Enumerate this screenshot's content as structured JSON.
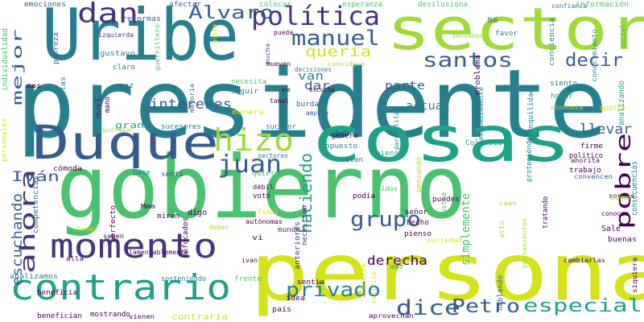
{
  "palette": {
    "dark_purple": "#440154",
    "indigo": "#46337e",
    "slate_blue": "#365c8d",
    "steel_blue": "#277f8e",
    "teal": "#1fa187",
    "green": "#4ac16d",
    "lime": "#a0da39",
    "yellow": "#d4e21a"
  },
  "words": [
    {
      "text": "presidente",
      "color": "#277f8e"
    },
    {
      "text": "gobierno",
      "color": "#4ac16d"
    },
    {
      "text": "persona",
      "color": "#d4e21a"
    },
    {
      "text": "cosas",
      "color": "#1fa187"
    },
    {
      "text": "sector",
      "color": "#a0da39"
    },
    {
      "text": "Uribe",
      "color": "#277f8e"
    },
    {
      "text": "Duque",
      "color": "#365c8d"
    },
    {
      "text": "contrario",
      "color": "#1fa187"
    },
    {
      "text": "momento",
      "color": "#46337e"
    },
    {
      "text": "política",
      "color": "#46337e"
    },
    {
      "text": "dan",
      "color": "#46337e"
    },
    {
      "text": "hizo",
      "color": "#a0da39"
    },
    {
      "text": "Álvaro",
      "color": "#365c8d"
    },
    {
      "text": "manuel",
      "color": "#365c8d"
    },
    {
      "text": "santos",
      "color": "#365c8d"
    },
    {
      "text": "juan",
      "color": "#365c8d"
    },
    {
      "text": "pobre",
      "color": "#440154"
    },
    {
      "text": "ahora",
      "color": "#46337e"
    },
    {
      "text": "grupo",
      "color": "#365c8d"
    },
    {
      "text": "privado",
      "color": "#277f8e"
    },
    {
      "text": "dice",
      "color": "#365c8d"
    },
    {
      "text": "Petro",
      "color": "#365c8d"
    },
    {
      "text": "especial",
      "color": "#1fa187"
    },
    {
      "text": "haciendo",
      "color": "#1fa187"
    },
    {
      "text": "decir",
      "color": "#365c8d"
    },
    {
      "text": "intereses",
      "color": "#365c8d"
    },
    {
      "text": "quería",
      "color": "#d4e21a"
    },
    {
      "text": "mejor",
      "color": "#365c8d"
    },
    {
      "text": "Iván",
      "color": "#365c8d"
    },
    {
      "text": "escuchando",
      "color": "#365c8d"
    },
    {
      "text": "derecha",
      "color": "#440154"
    },
    {
      "text": "llevar",
      "color": "#365c8d"
    },
    {
      "text": "actual",
      "color": "#277f8e"
    },
    {
      "text": "parte",
      "color": "#365c8d"
    },
    {
      "text": "van",
      "color": "#277f8e"
    },
    {
      "text": "dar",
      "color": "#365c8d"
    },
    {
      "text": "simplemente",
      "color": "#4ac16d"
    },
    {
      "text": "emociones",
      "color": "#365c8d"
    },
    {
      "text": "pobreza",
      "color": "#365c8d"
    },
    {
      "text": "gustavo",
      "color": "#277f8e"
    },
    {
      "text": "claro",
      "color": "#277f8e"
    },
    {
      "text": "reformas",
      "color": "#365c8d"
    },
    {
      "text": "afectar",
      "color": "#365c8d"
    },
    {
      "text": "guerrillero",
      "color": "#4ac16d"
    },
    {
      "text": "izquierda",
      "color": "#46337e"
    },
    {
      "text": "colocar",
      "color": "#4ac16d"
    },
    {
      "text": "esperanza",
      "color": "#4ac16d"
    },
    {
      "text": "desilusiona",
      "color": "#4ac16d"
    },
    {
      "text": "confianza",
      "color": "#277f8e"
    },
    {
      "text": "información",
      "color": "#4ac16d"
    },
    {
      "text": "conciencia",
      "color": "#277f8e"
    },
    {
      "text": "problema",
      "color": "#440154"
    },
    {
      "text": "Sé",
      "color": "#365c8d"
    },
    {
      "text": "favor",
      "color": "#277f8e"
    },
    {
      "text": "siento",
      "color": "#277f8e"
    },
    {
      "text": "hogar",
      "color": "#1fa187"
    },
    {
      "text": "seguir",
      "color": "#277f8e"
    },
    {
      "text": "necesita",
      "color": "#4ac16d"
    },
    {
      "text": "manera",
      "color": "#d4e21a"
    },
    {
      "text": "burda",
      "color": "#365c8d"
    },
    {
      "text": "mal",
      "color": "#46337e"
    },
    {
      "text": "mano",
      "color": "#440154"
    },
    {
      "text": "paz",
      "color": "#365c8d"
    },
    {
      "text": "gran",
      "color": "#1fa187"
    },
    {
      "text": "sucesores",
      "color": "#277f8e"
    },
    {
      "text": "sucesor",
      "color": "#277f8e"
    },
    {
      "text": "genera",
      "color": "#440154"
    },
    {
      "text": "opuesto",
      "color": "#277f8e"
    },
    {
      "text": "Colombia",
      "color": "#1fa187"
    },
    {
      "text": "piensa",
      "color": "#1fa187"
    },
    {
      "text": "pensando",
      "color": "#a0da39"
    },
    {
      "text": "ivan",
      "color": "#277f8e"
    },
    {
      "text": "cómoda",
      "color": "#440154"
    },
    {
      "text": "base",
      "color": "#277f8e"
    },
    {
      "text": "sentí",
      "color": "#365c8d"
    },
    {
      "text": "quieren",
      "color": "#4ac16d"
    },
    {
      "text": "votó",
      "color": "#440154"
    },
    {
      "text": "digo",
      "color": "#440154"
    },
    {
      "text": "miren",
      "color": "#440154"
    },
    {
      "text": "perfecto",
      "color": "#440154"
    },
    {
      "text": "enfocados",
      "color": "#440154"
    },
    {
      "text": "final",
      "color": "#d4e21a"
    },
    {
      "text": "mundo",
      "color": "#46337e"
    },
    {
      "text": "anteriores",
      "color": "#46337e"
    },
    {
      "text": "necesitan",
      "color": "#46337e"
    },
    {
      "text": "puedes",
      "color": "#440154"
    },
    {
      "text": "hecho",
      "color": "#440154"
    },
    {
      "text": "pienso",
      "color": "#440154"
    },
    {
      "text": "señor",
      "color": "#440154"
    },
    {
      "text": "usted",
      "color": "#4ac16d"
    },
    {
      "text": "podía",
      "color": "#440154"
    },
    {
      "text": "tratando",
      "color": "#440154"
    },
    {
      "text": "buenas",
      "color": "#440154"
    },
    {
      "text": "Sale",
      "color": "#440154"
    },
    {
      "text": "trabajo",
      "color": "#440154"
    },
    {
      "text": "convencen",
      "color": "#365c8d"
    },
    {
      "text": "firme",
      "color": "#440154"
    },
    {
      "text": "ahorita",
      "color": "#440154"
    },
    {
      "text": "político",
      "color": "#440154"
    },
    {
      "text": "sentía",
      "color": "#440154"
    },
    {
      "text": "idea",
      "color": "#440154"
    },
    {
      "text": "ver",
      "color": "#1fa187"
    },
    {
      "text": "hablando",
      "color": "#365c8d"
    },
    {
      "text": "país",
      "color": "#440154"
    },
    {
      "text": "frente",
      "color": "#4ac16d"
    },
    {
      "text": "sosteniendo",
      "color": "#277f8e"
    },
    {
      "text": "analizamos",
      "color": "#277f8e"
    },
    {
      "text": "beneficia",
      "color": "#440154"
    },
    {
      "text": "benefician",
      "color": "#440154"
    },
    {
      "text": "mostrando",
      "color": "#440154"
    },
    {
      "text": "vienen",
      "color": "#440154"
    },
    {
      "text": "contraria",
      "color": "#d4e21a"
    },
    {
      "text": "lamentablemente",
      "color": "#440154"
    },
    {
      "text": "aprovechan",
      "color": "#440154"
    },
    {
      "text": "almuerzo",
      "color": "#d4e21a"
    },
    {
      "text": "cambiarlas",
      "color": "#440154"
    },
    {
      "text": "siquiera",
      "color": "#440154"
    },
    {
      "text": "consecuencias",
      "color": "#277f8e"
    },
    {
      "text": "individualidad",
      "color": "#4ac16d"
    },
    {
      "text": "personales",
      "color": "#d4e21a"
    },
    {
      "text": "mas",
      "color": "#440154"
    },
    {
      "text": "gustaban",
      "color": "#a0da39"
    },
    {
      "text": "propuestas",
      "color": "#277f8e"
    },
    {
      "text": "competencias",
      "color": "#365c8d"
    },
    {
      "text": "todas",
      "color": "#d4e21a"
    },
    {
      "text": "saben",
      "color": "#440154"
    },
    {
      "text": "allá",
      "color": "#440154"
    },
    {
      "text": "Mmm",
      "color": "#440154"
    },
    {
      "text": "deben",
      "color": "#a0da39"
    },
    {
      "text": "autónomas",
      "color": "#440154"
    },
    {
      "text": "débil",
      "color": "#440154"
    },
    {
      "text": "vi",
      "color": "#440154"
    },
    {
      "text": "oídos",
      "color": "#4ac16d"
    },
    {
      "text": "sordos",
      "color": "#440154"
    },
    {
      "text": "conocen",
      "color": "#440154"
    },
    {
      "text": "cómo",
      "color": "#a0da39"
    },
    {
      "text": "caen",
      "color": "#a0da39"
    },
    {
      "text": "alto",
      "color": "#a0da39"
    },
    {
      "text": "pensamientos",
      "color": "#a0da39"
    },
    {
      "text": "sociedad",
      "color": "#d4e21a"
    },
    {
      "text": "calificó",
      "color": "#d4e21a"
    },
    {
      "text": "sectores",
      "color": "#277f8e"
    },
    {
      "text": "pueda",
      "color": "#440154"
    },
    {
      "text": "mucha",
      "color": "#365c8d"
    },
    {
      "text": "mueven",
      "color": "#440154"
    },
    {
      "text": "decisiones",
      "color": "#277f8e"
    },
    {
      "text": "considero",
      "color": "#a0da39"
    },
    {
      "text": "ve",
      "color": "#440154"
    },
    {
      "text": "escucha",
      "color": "#440154"
    },
    {
      "text": "amplio",
      "color": "#365c8d"
    },
    {
      "text": "tamal",
      "color": "#440154"
    },
    {
      "text": "mayoría",
      "color": "#365c8d"
    },
    {
      "text": "gusta",
      "color": "#d4e21a"
    },
    {
      "text": "pensaban",
      "color": "#a0da39"
    },
    {
      "text": "paramilitar",
      "color": "#277f8e"
    },
    {
      "text": "lastimosamente",
      "color": "#277f8e"
    },
    {
      "text": "tranquilidad",
      "color": "#277f8e"
    },
    {
      "text": "protegiéndose",
      "color": "#277f8e"
    },
    {
      "text": "economía",
      "color": "#a0da39"
    },
    {
      "text": "aporte",
      "color": "#d4e21a"
    },
    {
      "text": "conocimiento",
      "color": "#277f8e"
    },
    {
      "text": "analizando",
      "color": "#1fa187"
    },
    {
      "text": "social",
      "color": "#4ac16d"
    },
    {
      "text": "ivan",
      "color": "#440154"
    }
  ]
}
